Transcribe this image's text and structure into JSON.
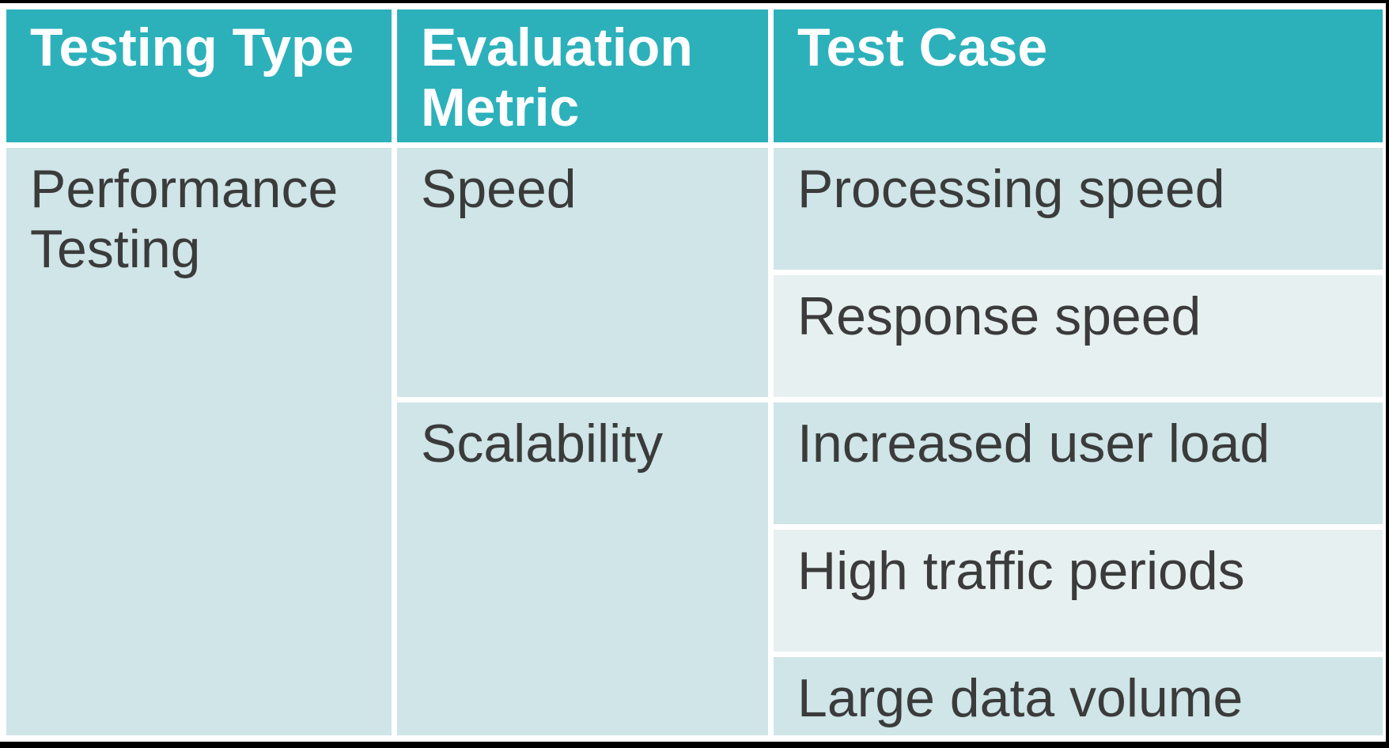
{
  "table": {
    "headers": [
      {
        "label": "Testing Type"
      },
      {
        "label": "Evaluation Metric"
      },
      {
        "label": "Test Case"
      }
    ],
    "testing_type": "Performance Testing",
    "metrics": [
      {
        "label": "Speed",
        "test_cases": [
          "Processing speed",
          "Response speed"
        ]
      },
      {
        "label": "Scalability",
        "test_cases": [
          "Increased user load",
          "High traffic periods",
          "Large data volume"
        ]
      }
    ]
  },
  "colors": {
    "header_background": "#2cb1bb",
    "header_text": "#ffffff",
    "row_shade_dark": "#cfe5e7",
    "row_shade_light": "#e7f0f1",
    "body_text": "#3b3b3b",
    "border": "#000000"
  }
}
